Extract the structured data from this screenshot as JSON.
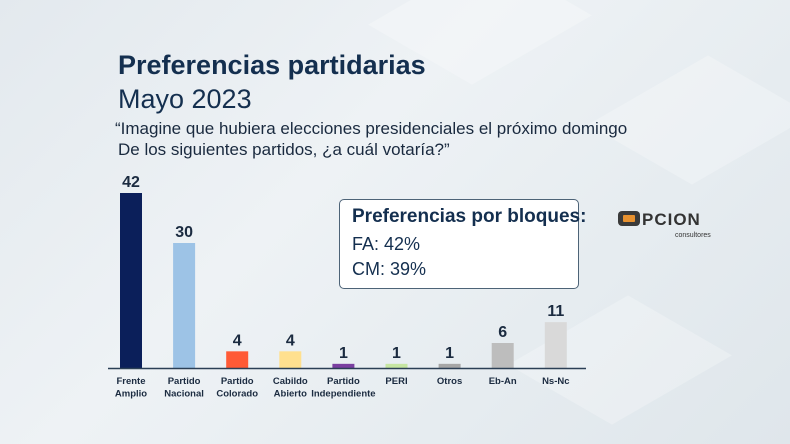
{
  "title": "Preferencias partidarias",
  "subtitle": "Mayo 2023",
  "question_line1": "“Imagine que hubiera elecciones presidenciales el próximo domingo",
  "question_line2": "De los siguientes partidos, ¿a cuál votaría?”",
  "blocks": {
    "heading": "Preferencias por bloques:",
    "fa": "FA: 42%",
    "cm": "CM: 39%"
  },
  "logo": {
    "text": "OPCION",
    "sub": "consultores"
  },
  "chart_data": {
    "type": "bar",
    "categories": [
      [
        "Frente",
        "Amplio"
      ],
      [
        "Partido",
        "Nacional"
      ],
      [
        "Partido",
        "Colorado"
      ],
      [
        "Cabildo",
        "Abierto"
      ],
      [
        "Partido",
        "Independiente"
      ],
      [
        "PERI"
      ],
      [
        "Otros"
      ],
      [
        "Eb-An"
      ],
      [
        "Ns-Nc"
      ]
    ],
    "values": [
      42,
      30,
      4,
      4,
      1,
      1,
      1,
      6,
      11
    ],
    "colors": [
      "#0b1f5a",
      "#9dc3e6",
      "#ff5a36",
      "#ffe08f",
      "#7a3fa0",
      "#c6e6a2",
      "#a6a6a6",
      "#bdbdbd",
      "#d9d9d9"
    ],
    "ylim": [
      0,
      42
    ],
    "grid": false
  }
}
